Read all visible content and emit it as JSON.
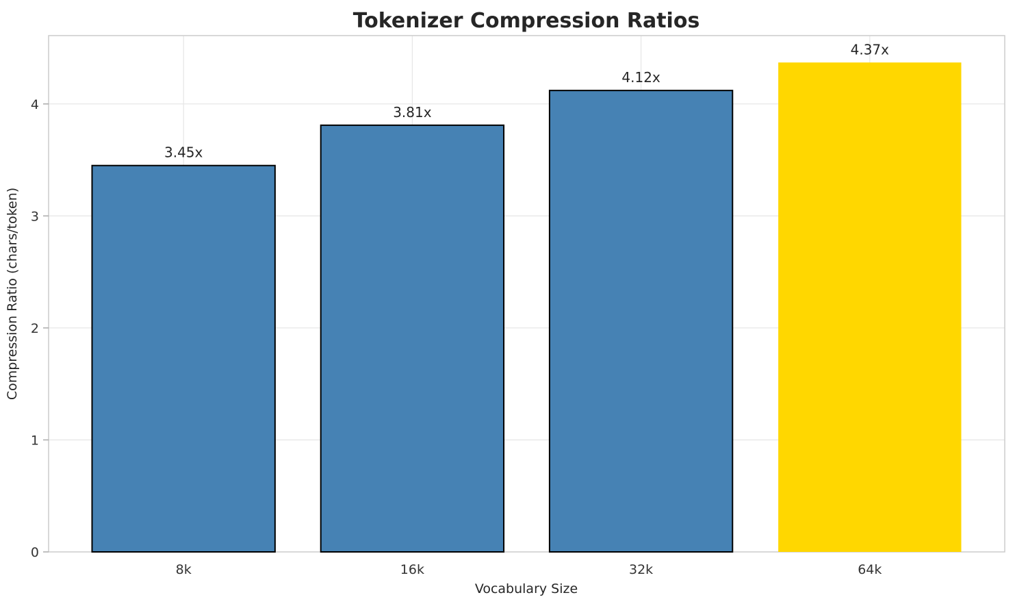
{
  "figure": {
    "title": "Tokenizer Compression Ratios"
  },
  "chart_data": {
    "type": "bar",
    "title": "Tokenizer Compression Ratios",
    "xlabel": "Vocabulary Size",
    "ylabel": "Compression Ratio (chars/token)",
    "categories": [
      "8k",
      "16k",
      "32k",
      "64k"
    ],
    "values": [
      3.45,
      3.81,
      4.12,
      4.37
    ],
    "bar_labels": [
      "3.45x",
      "3.81x",
      "4.12x",
      "4.37x"
    ],
    "yticks": [
      0,
      1,
      2,
      3,
      4
    ],
    "ylim": [
      0,
      4.61
    ],
    "grid": true,
    "legend": "none",
    "highlight_index": 3,
    "bar_colors": [
      "#4682B4",
      "#4682B4",
      "#4682B4",
      "#FFD700"
    ],
    "bar_edge_colors": [
      "#000000",
      "#000000",
      "#000000",
      "none"
    ],
    "colors": {
      "bar_default": "#4682B4",
      "bar_highlight": "#FFD700",
      "bar_edge": "#000000",
      "grid": "#e7e7e7",
      "spine": "#cccccc",
      "tick": "#aaaaaa",
      "text": "#262626"
    }
  }
}
